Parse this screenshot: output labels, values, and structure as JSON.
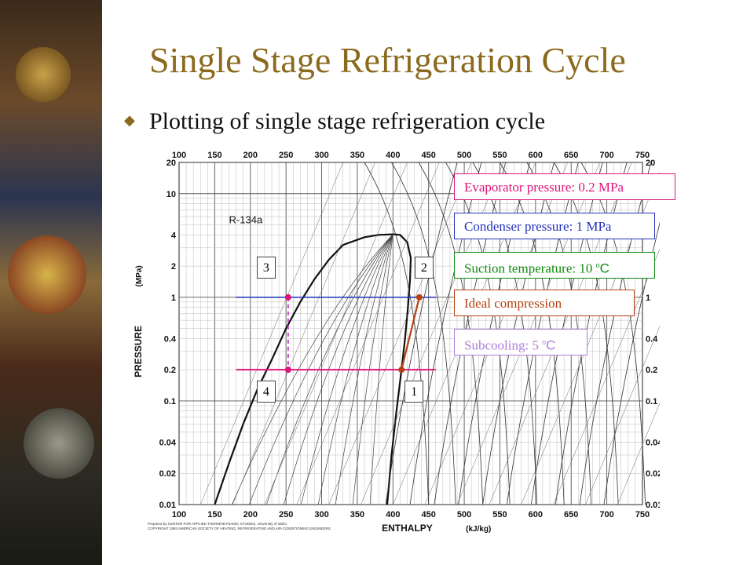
{
  "slide": {
    "title": "Single Stage Refrigeration Cycle",
    "bullet": "Plotting of single stage refrigeration cycle"
  },
  "chart_data": {
    "type": "ph-diagram",
    "refrigerant": "R-134a",
    "xlabel": "ENTHALPY",
    "xunit": "(kJ/kg)",
    "ylabel": "PRESSURE",
    "yunit": "(MPa)",
    "xlim": [
      100,
      750
    ],
    "ylim": [
      0.01,
      20
    ],
    "y_scale": "log",
    "x_ticks": [
      "100",
      "150",
      "200",
      "250",
      "300",
      "350",
      "400",
      "450",
      "500",
      "550",
      "600",
      "650",
      "700",
      "750"
    ],
    "y_ticks": [
      "20",
      "10",
      "4",
      "2",
      "1",
      "0.4",
      "0.2",
      "0.1",
      "0.04",
      "0.02",
      "0.01"
    ],
    "footer": [
      "Prepared by  CENTER FOR APPLIED THERMODYNAMIC STUDIES, University of Idaho",
      "COPYRIGHT 1992 AMERICAN SOCIETY OF HEATING, REFRIGERATING AND AIR-CONDITIONING ENGINEERS"
    ],
    "state_points": [
      {
        "label": "1",
        "h": 412,
        "p": 0.2
      },
      {
        "label": "2",
        "h": 437,
        "p": 1.0
      },
      {
        "label": "3",
        "h": 253,
        "p": 1.0
      },
      {
        "label": "4",
        "h": 253,
        "p": 0.2
      }
    ],
    "lines": {
      "evaporator": {
        "p": 0.2,
        "color": "#e0137a"
      },
      "condenser": {
        "p": 1.0,
        "color": "#2233bb"
      },
      "compression": {
        "color": "#b5400f"
      },
      "expansion": {
        "color": "#c84cc8"
      }
    }
  },
  "legend": [
    {
      "text": "Evaporator pressure: 0.2 MPa",
      "color": "#e0137a"
    },
    {
      "text": "Condenser pressure: 1 MPa",
      "color": "#2233bb"
    },
    {
      "text": "Suction temperature: 10 ",
      "sup": "o",
      "unit": "C",
      "color": "#108a10"
    },
    {
      "text": "Ideal compression",
      "color": "#b5400f"
    },
    {
      "text": "Subcooling: 5 ",
      "sup": "o",
      "unit": "C",
      "color": "#b07cd8"
    }
  ]
}
